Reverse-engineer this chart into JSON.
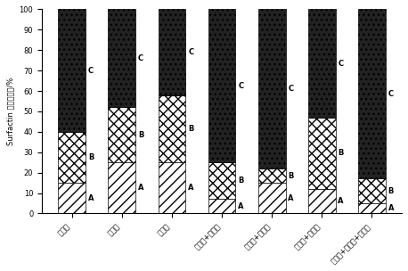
{
  "categories": [
    "豆粕粉",
    "棉籽油",
    "米糠粉",
    "豆粕粉+棉籽油",
    "豆粕粉+米糠粉",
    "棉籽油+米糠粉",
    "豆粕粉+棉籽油+米糠粉"
  ],
  "A_vals": [
    15,
    25,
    25,
    7,
    15,
    12,
    5
  ],
  "B_vals": [
    25,
    27,
    33,
    18,
    7,
    35,
    12
  ],
  "C_vals": [
    60,
    48,
    42,
    75,
    78,
    53,
    83
  ],
  "ylabel": "Surfactin 同系物组成/%",
  "ylim": [
    0,
    100
  ],
  "yticks": [
    0,
    10,
    20,
    30,
    40,
    50,
    60,
    70,
    80,
    90,
    100
  ],
  "color_A": "#888888",
  "color_B": "#dddddd",
  "color_C": "#111111",
  "hatch_A": "///",
  "hatch_B": "---",
  "hatch_C": "..."
}
